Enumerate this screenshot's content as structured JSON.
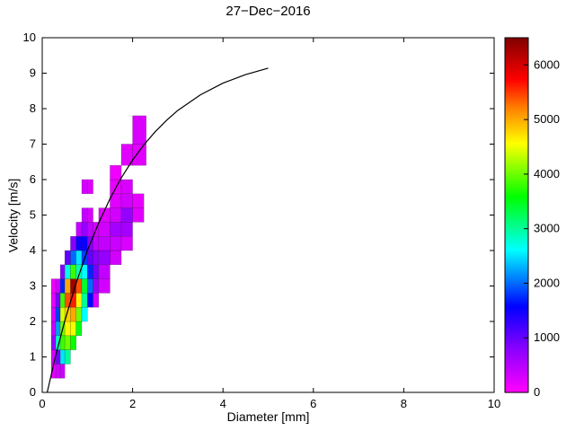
{
  "title": "27−Dec−2016",
  "chart_data": {
    "type": "heatmap",
    "title": "27−Dec−2016",
    "xlabel": "Diameter [mm]",
    "ylabel": "Velocity [m/s]",
    "xlim": [
      0,
      10
    ],
    "ylim": [
      0,
      10
    ],
    "x_ticks": [
      0,
      2,
      4,
      6,
      8,
      10
    ],
    "y_ticks": [
      0,
      1,
      2,
      3,
      4,
      5,
      6,
      7,
      8,
      9,
      10
    ],
    "grid": false,
    "colorbar": {
      "position": "right",
      "vmin": 0,
      "vmax": 6500,
      "ticks": [
        0,
        1000,
        2000,
        3000,
        4000,
        5000,
        6000
      ]
    },
    "colormap_stops": [
      [
        0.0,
        "#ff00ff"
      ],
      [
        0.13,
        "#8000ff"
      ],
      [
        0.24,
        "#0000ff"
      ],
      [
        0.4,
        "#00ffff"
      ],
      [
        0.55,
        "#00ff00"
      ],
      [
        0.7,
        "#ffff00"
      ],
      [
        0.8,
        "#ff8000"
      ],
      [
        0.88,
        "#ff0000"
      ],
      [
        1.0,
        "#7f0000"
      ]
    ],
    "cell_format": [
      "diameter_mm",
      "velocity_ms",
      "width_mm",
      "height_ms",
      "count"
    ],
    "cells": [
      [
        0.2,
        0.4,
        0.1,
        0.4,
        150
      ],
      [
        0.2,
        0.8,
        0.1,
        0.4,
        300
      ],
      [
        0.2,
        1.2,
        0.1,
        0.4,
        700
      ],
      [
        0.2,
        1.6,
        0.1,
        0.4,
        400
      ],
      [
        0.2,
        2.0,
        0.1,
        0.4,
        250
      ],
      [
        0.2,
        2.4,
        0.1,
        0.4,
        150
      ],
      [
        0.2,
        2.8,
        0.1,
        0.4,
        100
      ],
      [
        0.3,
        0.4,
        0.1,
        0.4,
        300
      ],
      [
        0.3,
        0.8,
        0.1,
        0.4,
        900
      ],
      [
        0.3,
        1.2,
        0.1,
        0.4,
        2800
      ],
      [
        0.3,
        1.6,
        0.1,
        0.4,
        2200
      ],
      [
        0.3,
        2.0,
        0.1,
        0.4,
        1800
      ],
      [
        0.3,
        2.4,
        0.1,
        0.4,
        900
      ],
      [
        0.3,
        2.8,
        0.1,
        0.4,
        300
      ],
      [
        0.4,
        0.4,
        0.1,
        0.4,
        350
      ],
      [
        0.4,
        0.8,
        0.1,
        0.4,
        2500
      ],
      [
        0.4,
        1.2,
        0.1,
        0.4,
        3800
      ],
      [
        0.4,
        1.6,
        0.1,
        0.4,
        4000
      ],
      [
        0.4,
        2.0,
        0.1,
        0.4,
        4400
      ],
      [
        0.4,
        2.4,
        0.1,
        0.4,
        3800
      ],
      [
        0.4,
        2.8,
        0.1,
        0.4,
        1700
      ],
      [
        0.4,
        3.2,
        0.1,
        0.4,
        800
      ],
      [
        0.5,
        0.8,
        0.125,
        0.4,
        3000
      ],
      [
        0.5,
        1.2,
        0.125,
        0.4,
        4000
      ],
      [
        0.5,
        1.6,
        0.125,
        0.4,
        4600
      ],
      [
        0.5,
        2.0,
        0.125,
        0.4,
        4800
      ],
      [
        0.5,
        2.4,
        0.125,
        0.4,
        5400
      ],
      [
        0.5,
        2.8,
        0.125,
        0.4,
        5000
      ],
      [
        0.5,
        3.2,
        0.125,
        0.4,
        2700
      ],
      [
        0.5,
        3.6,
        0.125,
        0.4,
        1000
      ],
      [
        0.625,
        1.2,
        0.125,
        0.4,
        3600
      ],
      [
        0.625,
        1.6,
        0.125,
        0.4,
        4500
      ],
      [
        0.625,
        2.0,
        0.125,
        0.4,
        5000
      ],
      [
        0.625,
        2.4,
        0.125,
        0.4,
        5600
      ],
      [
        0.625,
        2.8,
        0.125,
        0.4,
        6300
      ],
      [
        0.625,
        3.2,
        0.125,
        0.4,
        3800
      ],
      [
        0.625,
        3.6,
        0.125,
        0.4,
        2000
      ],
      [
        0.625,
        4.0,
        0.125,
        0.4,
        800
      ],
      [
        0.75,
        1.6,
        0.125,
        0.4,
        3500
      ],
      [
        0.75,
        2.0,
        0.125,
        0.4,
        4000
      ],
      [
        0.75,
        2.4,
        0.125,
        0.4,
        4600
      ],
      [
        0.75,
        2.8,
        0.125,
        0.4,
        5400
      ],
      [
        0.75,
        3.2,
        0.125,
        0.4,
        2900
      ],
      [
        0.75,
        3.6,
        0.125,
        0.4,
        2500
      ],
      [
        0.75,
        4.0,
        0.125,
        0.4,
        1500
      ],
      [
        0.75,
        4.4,
        0.125,
        0.4,
        400
      ],
      [
        0.875,
        2.0,
        0.125,
        0.4,
        2600
      ],
      [
        0.875,
        2.4,
        0.125,
        0.4,
        3000
      ],
      [
        0.875,
        2.8,
        0.125,
        0.4,
        3400
      ],
      [
        0.875,
        3.2,
        0.125,
        0.4,
        2600
      ],
      [
        0.875,
        3.6,
        0.125,
        0.4,
        1800
      ],
      [
        0.875,
        4.0,
        0.125,
        0.4,
        1500
      ],
      [
        0.875,
        4.4,
        0.125,
        0.4,
        700
      ],
      [
        0.875,
        4.8,
        0.125,
        0.4,
        400
      ],
      [
        0.875,
        5.6,
        0.125,
        0.4,
        300
      ],
      [
        1.0,
        2.4,
        0.125,
        0.4,
        1600
      ],
      [
        1.0,
        2.8,
        0.125,
        0.4,
        2000
      ],
      [
        1.0,
        3.2,
        0.125,
        0.4,
        1700
      ],
      [
        1.0,
        3.6,
        0.125,
        0.4,
        1000
      ],
      [
        1.0,
        4.0,
        0.125,
        0.4,
        800
      ],
      [
        1.0,
        4.4,
        0.125,
        0.4,
        400
      ],
      [
        1.0,
        4.8,
        0.125,
        0.4,
        250
      ],
      [
        1.0,
        5.6,
        0.125,
        0.4,
        200
      ],
      [
        1.125,
        2.4,
        0.125,
        0.4,
        300
      ],
      [
        1.125,
        2.8,
        0.125,
        0.4,
        700
      ],
      [
        1.125,
        3.2,
        0.125,
        0.4,
        900
      ],
      [
        1.125,
        3.6,
        0.125,
        0.4,
        800
      ],
      [
        1.125,
        4.0,
        0.125,
        0.4,
        400
      ],
      [
        1.125,
        4.4,
        0.125,
        0.4,
        300
      ],
      [
        1.25,
        2.8,
        0.25,
        0.4,
        300
      ],
      [
        1.25,
        3.2,
        0.25,
        0.4,
        400
      ],
      [
        1.25,
        3.6,
        0.25,
        0.4,
        700
      ],
      [
        1.25,
        4.0,
        0.25,
        0.4,
        400
      ],
      [
        1.25,
        4.4,
        0.25,
        0.4,
        300
      ],
      [
        1.25,
        4.8,
        0.25,
        0.4,
        200
      ],
      [
        1.5,
        3.6,
        0.25,
        0.4,
        300
      ],
      [
        1.5,
        4.0,
        0.25,
        0.4,
        350
      ],
      [
        1.5,
        4.4,
        0.25,
        0.4,
        600
      ],
      [
        1.5,
        4.8,
        0.25,
        0.4,
        300
      ],
      [
        1.5,
        5.2,
        0.25,
        0.4,
        200
      ],
      [
        1.5,
        5.6,
        0.25,
        0.4,
        150
      ],
      [
        1.5,
        6.0,
        0.25,
        0.4,
        100
      ],
      [
        1.75,
        4.0,
        0.25,
        0.4,
        250
      ],
      [
        1.75,
        4.4,
        0.25,
        0.4,
        600
      ],
      [
        1.75,
        4.8,
        0.25,
        0.4,
        700
      ],
      [
        1.75,
        5.2,
        0.25,
        0.4,
        300
      ],
      [
        1.75,
        5.6,
        0.25,
        0.4,
        250
      ],
      [
        1.75,
        6.4,
        0.25,
        0.6,
        200
      ],
      [
        2.0,
        4.8,
        0.25,
        0.4,
        200
      ],
      [
        2.0,
        5.2,
        0.25,
        0.4,
        150
      ],
      [
        2.0,
        6.4,
        0.3,
        0.6,
        200
      ],
      [
        2.0,
        7.0,
        0.3,
        0.8,
        250
      ]
    ],
    "curve_name": "terminal-velocity-fit",
    "curve": [
      [
        0.11,
        0.0
      ],
      [
        0.3,
        1.05
      ],
      [
        0.5,
        2.02
      ],
      [
        0.75,
        3.08
      ],
      [
        1.0,
        4.0
      ],
      [
        1.25,
        4.78
      ],
      [
        1.5,
        5.46
      ],
      [
        1.75,
        6.05
      ],
      [
        2.0,
        6.55
      ],
      [
        2.25,
        6.98
      ],
      [
        2.5,
        7.35
      ],
      [
        2.75,
        7.67
      ],
      [
        3.0,
        7.95
      ],
      [
        3.5,
        8.39
      ],
      [
        4.0,
        8.72
      ],
      [
        4.5,
        8.96
      ],
      [
        5.0,
        9.14
      ]
    ]
  }
}
